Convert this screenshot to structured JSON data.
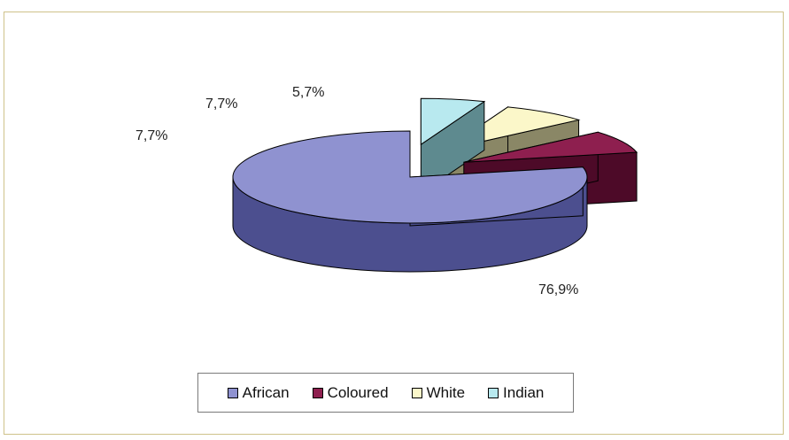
{
  "chart_data": {
    "type": "pie",
    "categories": [
      "African",
      "Coloured",
      "White",
      "Indian"
    ],
    "values": [
      76.9,
      7.7,
      7.7,
      5.7
    ],
    "labels": [
      "76,9%",
      "7,7%",
      "7,7%",
      "5,7%"
    ],
    "colors": [
      "#8f92d0",
      "#8e1f4f",
      "#fbf7c9",
      "#b8e9ef"
    ],
    "side_colors": [
      "#4c4f8f",
      "#4d0a28",
      "#8a8766",
      "#5e8a8f"
    ],
    "exploded": [
      false,
      true,
      true,
      true
    ],
    "three_d": true,
    "legend": "bottom",
    "title": ""
  }
}
